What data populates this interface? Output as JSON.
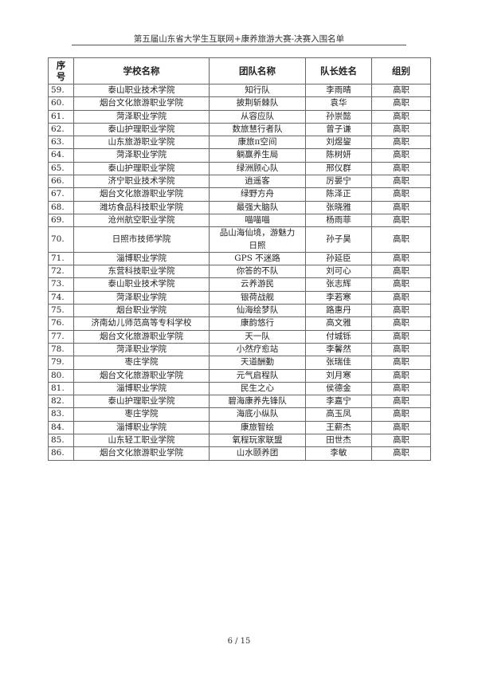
{
  "header": {
    "title": "第五届山东省大学生互联网+康养旅游大赛-决赛入围名单"
  },
  "table": {
    "columns": [
      "序号",
      "学校名称",
      "团队名称",
      "队长姓名",
      "组别"
    ],
    "rows": [
      [
        "59.",
        "泰山职业技术学院",
        "知行队",
        "李雨晴",
        "高职"
      ],
      [
        "60.",
        "烟台文化旅游职业学院",
        "披荆斩棘队",
        "袁华",
        "高职"
      ],
      [
        "61.",
        "菏泽职业学院",
        "从容应队",
        "孙崇懿",
        "高职"
      ],
      [
        "62.",
        "泰山护理职业学院",
        "数旅慧行者队",
        "曾子谦",
        "高职"
      ],
      [
        "63.",
        "山东旅游职业学院",
        "康旅π空间",
        "刘煜鋆",
        "高职"
      ],
      [
        "64.",
        "菏泽职业学院",
        "躺赢养生局",
        "陈树妍",
        "高职"
      ],
      [
        "65.",
        "泰山护理职业学院",
        "绿洲顾心队",
        "邢仪群",
        "高职"
      ],
      [
        "66.",
        "济宁职业技术学院",
        "逍遥客",
        "厉晏宁",
        "高职"
      ],
      [
        "67.",
        "烟台文化旅游职业学院",
        "绿野方舟",
        "陈泽正",
        "高职"
      ],
      [
        "68.",
        "潍坊食品科技职业学院",
        "最强大脑队",
        "张晓雅",
        "高职"
      ],
      [
        "69.",
        "沧州航空职业学院",
        "喵喵喵",
        "杨雨菲",
        "高职"
      ],
      [
        "70.",
        "日照市技师学院",
        "品山海仙境，游魅力日照",
        "孙子昊",
        "高职"
      ],
      [
        "71.",
        "淄博职业学院",
        "GPS 不迷路",
        "孙延臣",
        "高职"
      ],
      [
        "72.",
        "东营科技职业学院",
        "你答的不队",
        "刘可心",
        "高职"
      ],
      [
        "73.",
        "泰山职业技术学院",
        "云养游民",
        "张志辉",
        "高职"
      ],
      [
        "74.",
        "菏泽职业学院",
        "银荷战舰",
        "李若寒",
        "高职"
      ],
      [
        "75.",
        "烟台职业学院",
        "仙海绘梦队",
        "路惠丹",
        "高职"
      ],
      [
        "76.",
        "济南幼儿师范高等专科学校",
        "康韵悠行",
        "高文雅",
        "高职"
      ],
      [
        "77.",
        "烟台文化旅游职业学院",
        "天一队",
        "付城铄",
        "高职"
      ],
      [
        "78.",
        "菏泽职业学院",
        "小然疗愈站",
        "李馨然",
        "高职"
      ],
      [
        "79.",
        "枣庄学院",
        "天道酬勤",
        "张瑞佳",
        "高职"
      ],
      [
        "80.",
        "烟台文化旅游职业学院",
        "元气启程队",
        "刘月寒",
        "高职"
      ],
      [
        "81.",
        "淄博职业学院",
        "民生之心",
        "侯德金",
        "高职"
      ],
      [
        "82.",
        "泰山护理职业学院",
        "碧海康养先锋队",
        "李嘉宁",
        "高职"
      ],
      [
        "83.",
        "枣庄学院",
        "海底小纵队",
        "高玉凤",
        "高职"
      ],
      [
        "84.",
        "淄博职业学院",
        "康旅智绘",
        "王薪杰",
        "高职"
      ],
      [
        "85.",
        "山东轻工职业学院",
        "氧程玩家联盟",
        "田世杰",
        "高职"
      ],
      [
        "86.",
        "烟台文化旅游职业学院",
        "山水颐养团",
        "李敏",
        "高职"
      ]
    ]
  },
  "footer": {
    "page": "6 / 15"
  }
}
